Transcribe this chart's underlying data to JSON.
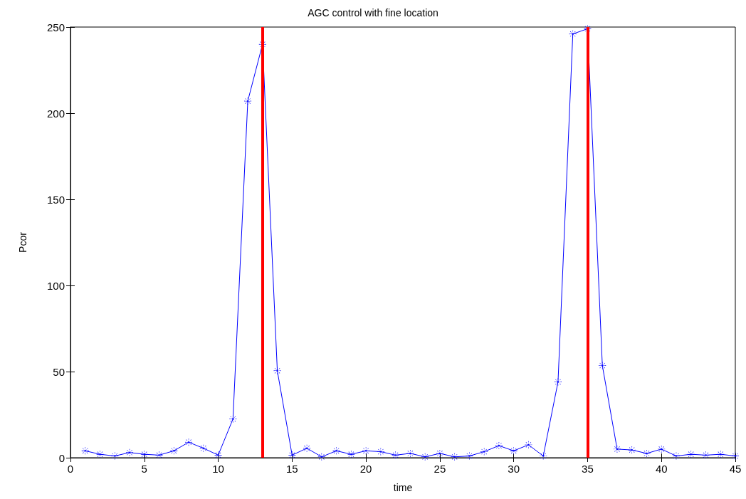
{
  "chart_data": {
    "type": "line",
    "title": "AGC control with fine location",
    "xlabel": "time",
    "ylabel": "Pcor",
    "x": [
      1,
      2,
      3,
      4,
      5,
      6,
      7,
      8,
      9,
      10,
      11,
      12,
      13,
      14,
      15,
      16,
      17,
      18,
      19,
      20,
      21,
      22,
      23,
      24,
      25,
      26,
      27,
      28,
      29,
      30,
      31,
      32,
      33,
      34,
      35,
      36,
      37,
      38,
      39,
      40,
      41,
      42,
      43,
      44,
      45
    ],
    "series": [
      {
        "color": "#0000ff",
        "values": [
          4,
          2,
          1,
          3,
          2,
          1.5,
          4,
          9,
          5.5,
          1.5,
          22.5,
          207,
          240,
          50.5,
          1.5,
          5.5,
          0.5,
          4,
          2,
          4,
          3.5,
          1.5,
          2.5,
          0.5,
          2.5,
          0.5,
          1,
          3.5,
          7,
          4,
          7.5,
          1,
          44,
          246,
          249,
          53.5,
          5,
          4.5,
          2.5,
          5,
          1,
          2,
          1.5,
          2,
          1
        ]
      }
    ],
    "xlim": [
      0,
      45
    ],
    "xticks": [
      0,
      5,
      10,
      15,
      20,
      25,
      30,
      35,
      40,
      45
    ],
    "ylim": [
      0,
      250
    ],
    "yticks": [
      0,
      50,
      100,
      150,
      200,
      250
    ],
    "ref_lines": [
      {
        "axis": "x",
        "value": 13,
        "color": "#ff0000"
      },
      {
        "axis": "x",
        "value": 35,
        "color": "#ff0000"
      }
    ],
    "grid": false,
    "marker": "star",
    "line_style": "solid"
  }
}
